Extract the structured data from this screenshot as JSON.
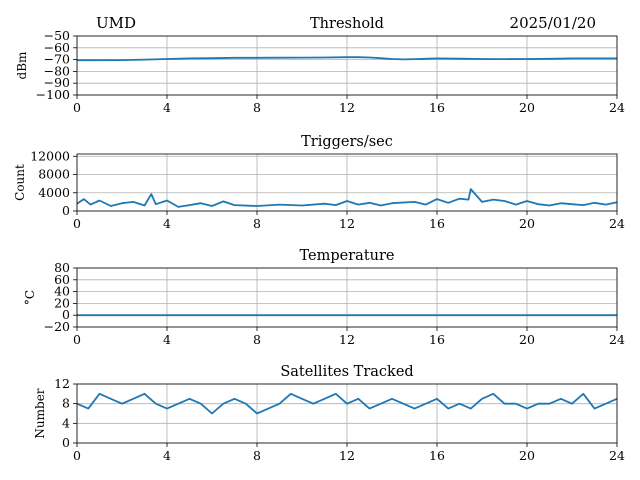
{
  "header": {
    "left": "UMD",
    "right": "2025/01/20"
  },
  "style": {
    "line_color": "#1f77b4",
    "grid": true
  },
  "chart_data": [
    {
      "type": "line",
      "title": "Threshold",
      "ylabel": "dBm",
      "xlim": [
        0,
        24
      ],
      "ylim": [
        -100,
        -50
      ],
      "xticks": [
        0,
        4,
        8,
        12,
        16,
        20,
        24
      ],
      "yticks": [
        -100,
        -90,
        -80,
        -70,
        -60,
        -50
      ],
      "xtick_labels": [
        "0",
        "4",
        "8",
        "12",
        "16",
        "20",
        "24"
      ],
      "ytick_labels": [
        "−100",
        "−90",
        "−80",
        "−70",
        "−60",
        "−50"
      ],
      "series": [
        {
          "x": [
            0,
            1,
            2,
            3,
            4,
            5,
            6,
            7,
            8,
            9,
            10,
            11,
            12,
            12.5,
            13,
            13.5,
            14,
            14.5,
            15,
            15.5,
            16,
            17,
            18,
            19,
            20,
            21,
            22,
            23,
            24
          ],
          "y": [
            -70.5,
            -70.5,
            -70.4,
            -70,
            -69.5,
            -69,
            -68.8,
            -68.5,
            -68.5,
            -68.4,
            -68.3,
            -68.2,
            -68,
            -68,
            -68.2,
            -68.8,
            -69.5,
            -69.8,
            -69.6,
            -69.3,
            -69,
            -69.2,
            -69.5,
            -69.6,
            -69.5,
            -69.3,
            -69,
            -69,
            -69
          ]
        }
      ]
    },
    {
      "type": "line",
      "title": "Triggers/sec",
      "ylabel": "Count",
      "xlim": [
        0,
        24
      ],
      "ylim": [
        0,
        12500
      ],
      "xticks": [
        0,
        4,
        8,
        12,
        16,
        20,
        24
      ],
      "yticks": [
        0,
        4000,
        8000,
        12000
      ],
      "xtick_labels": [
        "0",
        "4",
        "8",
        "12",
        "16",
        "20",
        "24"
      ],
      "ytick_labels": [
        "0",
        "4000",
        "8000",
        "12000"
      ],
      "series": [
        {
          "x": [
            0,
            0.3,
            0.6,
            1,
            1.5,
            2,
            2.5,
            3,
            3.3,
            3.5,
            4,
            4.5,
            5,
            5.5,
            6,
            6.5,
            7,
            8,
            9,
            10,
            11,
            11.5,
            12,
            12.5,
            13,
            13.5,
            14,
            15,
            15.5,
            16,
            16.5,
            17,
            17.4,
            17.5,
            18,
            18.5,
            19,
            19.5,
            20,
            20.5,
            21,
            21.5,
            22,
            22.5,
            23,
            23.5,
            24
          ],
          "y": [
            1600,
            2600,
            1400,
            2300,
            1100,
            1700,
            2000,
            1200,
            3700,
            1500,
            2300,
            900,
            1300,
            1700,
            1100,
            2100,
            1300,
            1100,
            1400,
            1200,
            1600,
            1300,
            2200,
            1400,
            1800,
            1200,
            1700,
            2000,
            1400,
            2600,
            1800,
            2700,
            2500,
            4800,
            2000,
            2500,
            2200,
            1400,
            2200,
            1500,
            1200,
            1700,
            1500,
            1300,
            1800,
            1400,
            1900
          ]
        }
      ]
    },
    {
      "type": "line",
      "title": "Temperature",
      "ylabel": "°C",
      "xlim": [
        0,
        24
      ],
      "ylim": [
        -20,
        80
      ],
      "xticks": [
        0,
        4,
        8,
        12,
        16,
        20,
        24
      ],
      "yticks": [
        -20,
        0,
        20,
        40,
        60,
        80
      ],
      "xtick_labels": [
        "0",
        "4",
        "8",
        "12",
        "16",
        "20",
        "24"
      ],
      "ytick_labels": [
        "−20",
        "0",
        "20",
        "40",
        "60",
        "80"
      ],
      "series": [
        {
          "x": [
            0,
            24
          ],
          "y": [
            0,
            0
          ]
        }
      ]
    },
    {
      "type": "line",
      "title": "Satellites Tracked",
      "ylabel": "Number",
      "xlim": [
        0,
        24
      ],
      "ylim": [
        0,
        12
      ],
      "xticks": [
        0,
        4,
        8,
        12,
        16,
        20,
        24
      ],
      "yticks": [
        0,
        4,
        8,
        12
      ],
      "xtick_labels": [
        "0",
        "4",
        "8",
        "12",
        "16",
        "20",
        "24"
      ],
      "ytick_labels": [
        "0",
        "4",
        "8",
        "12"
      ],
      "series": [
        {
          "x": [
            0,
            0.5,
            1,
            1.5,
            2,
            2.5,
            3,
            3.5,
            4,
            4.5,
            5,
            5.5,
            6,
            6.5,
            7,
            7.5,
            8,
            8.5,
            9,
            9.5,
            10,
            10.5,
            11,
            11.5,
            12,
            12.5,
            13,
            13.5,
            14,
            14.5,
            15,
            15.5,
            16,
            16.5,
            17,
            17.5,
            18,
            18.5,
            19,
            19.5,
            20,
            20.5,
            21,
            21.5,
            22,
            22.5,
            23,
            23.5,
            24
          ],
          "y": [
            8,
            7,
            10,
            9,
            8,
            9,
            10,
            8,
            7,
            8,
            9,
            8,
            6,
            8,
            9,
            8,
            6,
            7,
            8,
            10,
            9,
            8,
            9,
            10,
            8,
            9,
            7,
            8,
            9,
            8,
            7,
            8,
            9,
            7,
            8,
            7,
            9,
            10,
            8,
            8,
            7,
            8,
            8,
            9,
            8,
            10,
            7,
            8,
            9
          ]
        }
      ]
    }
  ]
}
